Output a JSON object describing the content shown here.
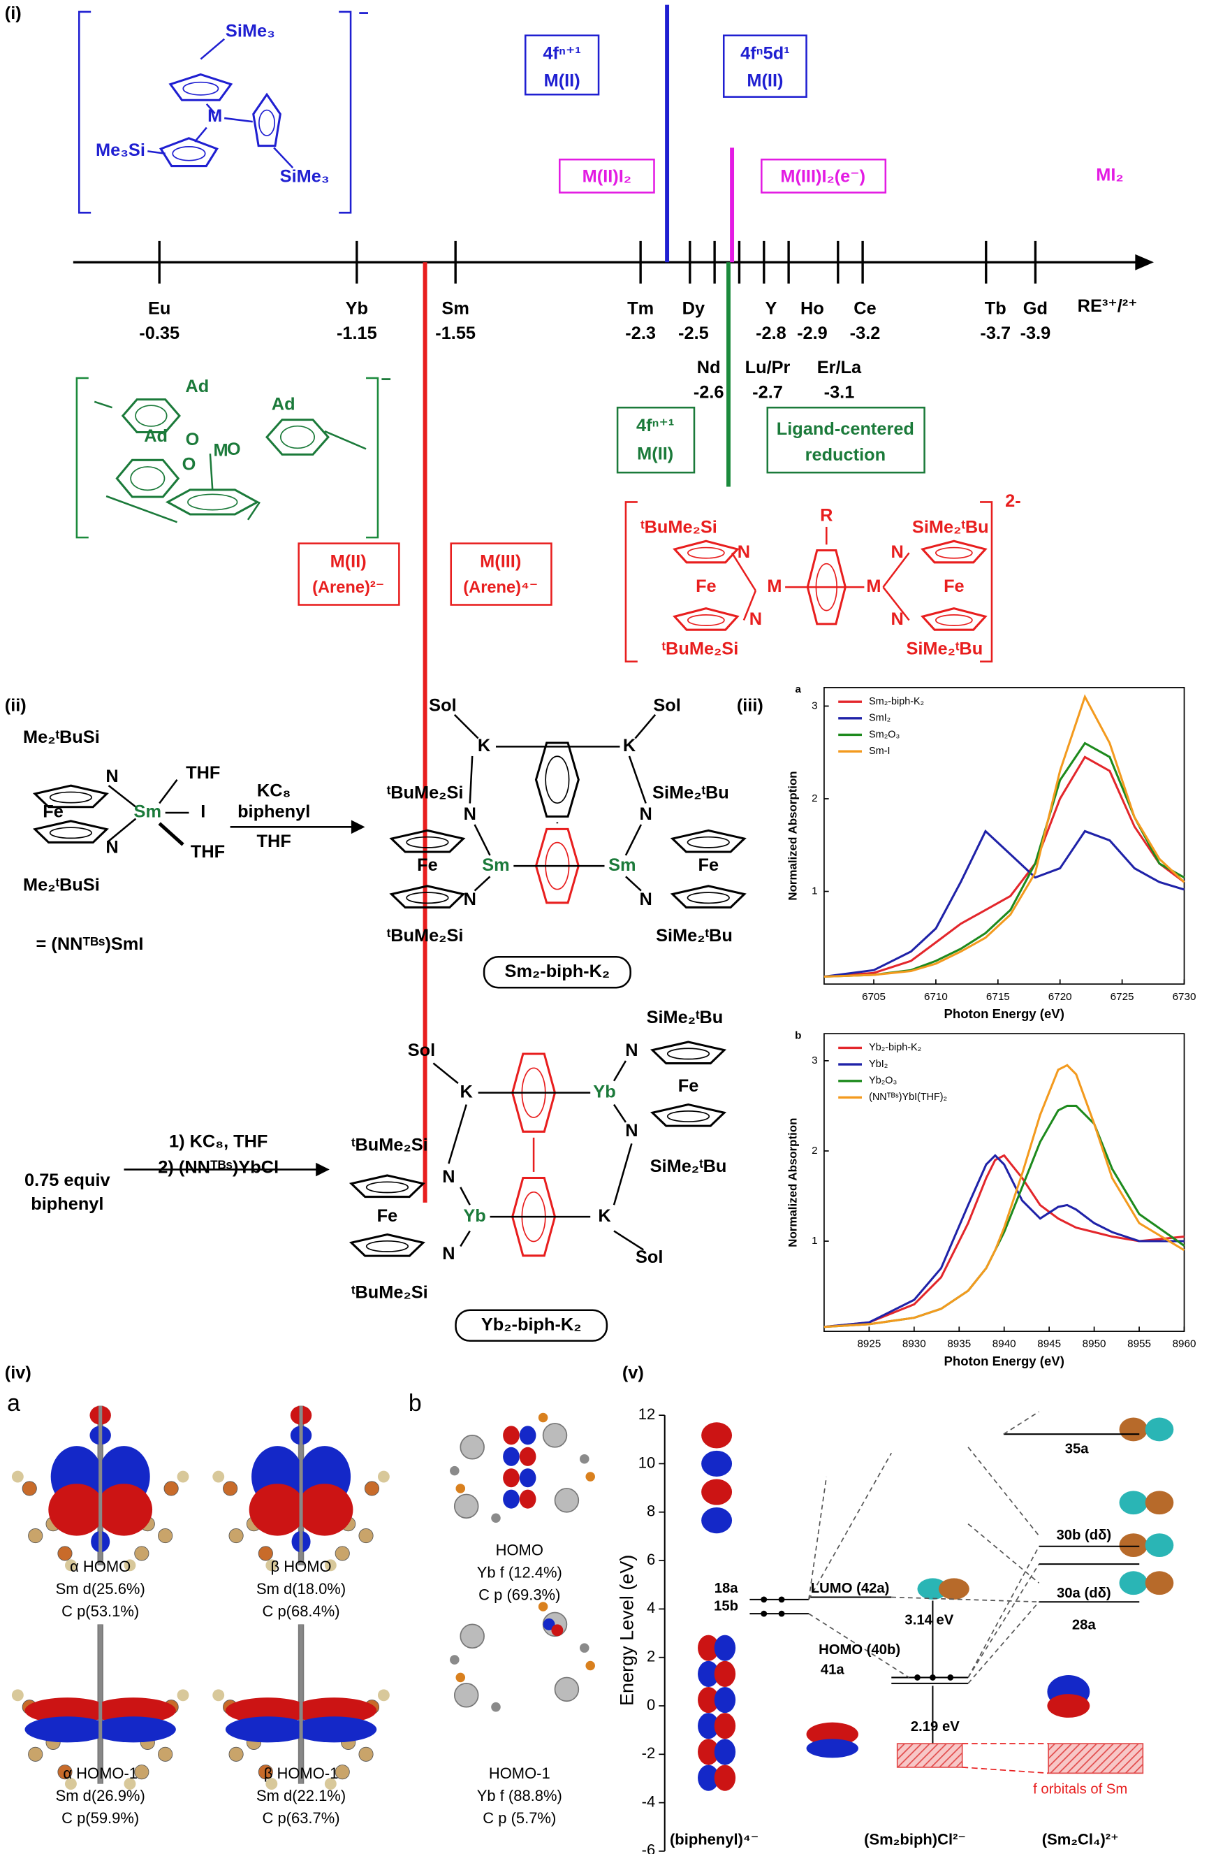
{
  "panel_i": {
    "label": "(i)",
    "axis_label": "RE³⁺/²⁺",
    "elements": [
      {
        "symbol": "Eu",
        "potential": -0.35
      },
      {
        "symbol": "Yb",
        "potential": -1.15
      },
      {
        "symbol": "Sm",
        "potential": -1.55
      },
      {
        "symbol": "Tm",
        "potential": -2.3
      },
      {
        "symbol": "Dy",
        "potential": -2.5
      },
      {
        "symbol": "Nd",
        "potential": -2.6
      },
      {
        "symbol": "Lu/Pr",
        "potential": -2.7
      },
      {
        "symbol": "Y",
        "potential": -2.8
      },
      {
        "symbol": "Ho",
        "potential": -2.9
      },
      {
        "symbol": "Er/La",
        "potential": -3.1
      },
      {
        "symbol": "Ce",
        "potential": -3.2
      },
      {
        "symbol": "Tb",
        "potential": -3.7
      },
      {
        "symbol": "Gd",
        "potential": -3.9
      }
    ],
    "blue_complex": [
      "SiMe₃",
      "M",
      "Me₃Si",
      "SiMe₃",
      "−"
    ],
    "blue_boxes": [
      [
        "4fⁿ⁺¹",
        "M(II)"
      ],
      [
        "4fⁿ5d¹",
        "M(II)"
      ]
    ],
    "magenta_labels": [
      "M(II)I₂",
      "M(III)I₂(e⁻)",
      "MI₂"
    ],
    "green_complex": [
      "Ad",
      "Ad",
      "Ad",
      "O",
      "O",
      "O",
      "M",
      "−"
    ],
    "green_boxes": [
      [
        "4fⁿ⁺¹",
        "M(II)"
      ],
      [
        "Ligand-centered",
        "reduction"
      ]
    ],
    "red_boxes": [
      [
        "M(II)",
        "(Arene)²⁻"
      ],
      [
        "M(III)",
        "(Arene)⁴⁻"
      ]
    ],
    "red_complex": [
      "ᵗBuMe₂Si",
      "N",
      "Fe",
      "N",
      "ᵗBuMe₂Si",
      "R",
      "M",
      "M",
      "SiMe₂ᵗBu",
      "N",
      "Fe",
      "N",
      "SiMe₂ᵗBu",
      "2-"
    ]
  },
  "panel_ii": {
    "label": "(ii)",
    "reactant": [
      "Me₂ᵗBuSi",
      "N",
      "THF",
      "Fe",
      "Sm",
      "I",
      "N",
      "THF",
      "Me₂ᵗBuSi",
      "= (NNᵀᴮˢ)SmI"
    ],
    "conditions_1": [
      "KC₈",
      "biphenyl",
      "THF"
    ],
    "product_1": [
      "Sol",
      "K",
      "K",
      "Sol",
      "ᵗBuMe₂Si",
      "N",
      "SiMe₂ᵗBu",
      "N",
      "Fe",
      "Sm",
      "Sm",
      "Fe",
      "N",
      "N",
      "ᵗBuMe₂Si",
      "SiMe₂ᵗBu"
    ],
    "product_1_name": "Sm₂-biph-K₂",
    "reagent_2": [
      "0.75 equiv",
      "biphenyl"
    ],
    "conditions_2": [
      "1) KC₈, THF",
      "2) (NNᵀᴮˢ)YbCl"
    ],
    "product_2": [
      "Sol",
      "K",
      "Yb",
      "SiMe₂ᵗBu",
      "N",
      "Fe",
      "N",
      "SiMe₂ᵗBu",
      "ᵗBuMe₂Si",
      "N",
      "Fe",
      "Yb",
      "K",
      "N",
      "ᵗBuMe₂Si",
      "Sol"
    ],
    "product_2_name": "Yb₂-biph-K₂"
  },
  "panel_iii": {
    "label": "(iii)"
  },
  "chart_data": [
    {
      "type": "line",
      "title": "a",
      "xlabel": "Photon Energy (eV)",
      "ylabel": "Normalized Absorption",
      "x": [
        6701,
        6705,
        6708,
        6710,
        6712,
        6714,
        6716,
        6718,
        6720,
        6722,
        6724,
        6726,
        6728,
        6730
      ],
      "xlim": [
        6701,
        6730
      ],
      "xticks": [
        6705,
        6710,
        6715,
        6720,
        6725,
        6730
      ],
      "ylim": [
        0,
        3.2
      ],
      "yticks": [
        1,
        2,
        3
      ],
      "series": [
        {
          "name": "Sm₂-biph-K₂",
          "color": "#e3262b",
          "values": [
            0.08,
            0.12,
            0.25,
            0.45,
            0.65,
            0.8,
            0.95,
            1.3,
            2.0,
            2.45,
            2.3,
            1.7,
            1.3,
            1.1
          ]
        },
        {
          "name": "SmI₂",
          "color": "#1f22a8",
          "values": [
            0.08,
            0.15,
            0.35,
            0.6,
            1.1,
            1.65,
            1.4,
            1.15,
            1.25,
            1.65,
            1.55,
            1.25,
            1.1,
            1.02
          ]
        },
        {
          "name": "Sm₂O₃",
          "color": "#1d8a1d",
          "values": [
            0.08,
            0.1,
            0.15,
            0.25,
            0.38,
            0.55,
            0.8,
            1.3,
            2.2,
            2.6,
            2.45,
            1.8,
            1.3,
            1.15
          ]
        },
        {
          "name": "Sm-I",
          "color": "#f39a1e",
          "values": [
            0.08,
            0.1,
            0.14,
            0.22,
            0.35,
            0.5,
            0.75,
            1.2,
            2.3,
            3.1,
            2.6,
            1.8,
            1.35,
            1.1
          ]
        }
      ]
    },
    {
      "type": "line",
      "title": "b",
      "xlabel": "Photon Energy (eV)",
      "ylabel": "Normalized Absorption",
      "x": [
        8920,
        8925,
        8930,
        8933,
        8936,
        8938,
        8939,
        8940,
        8942,
        8944,
        8946,
        8947,
        8948,
        8950,
        8952,
        8955,
        8960
      ],
      "xlim": [
        8920,
        8960
      ],
      "xticks": [
        8925,
        8930,
        8935,
        8940,
        8945,
        8950,
        8955,
        8960
      ],
      "ylim": [
        0,
        3.3
      ],
      "yticks": [
        1,
        2,
        3
      ],
      "series": [
        {
          "name": "Yb₂-biph-K₂",
          "color": "#e3262b",
          "values": [
            0.05,
            0.1,
            0.3,
            0.6,
            1.2,
            1.7,
            1.9,
            1.95,
            1.7,
            1.4,
            1.25,
            1.2,
            1.15,
            1.1,
            1.05,
            1.0,
            1.05
          ]
        },
        {
          "name": "YbI₂",
          "color": "#1f22a8",
          "values": [
            0.05,
            0.1,
            0.35,
            0.7,
            1.4,
            1.85,
            1.95,
            1.85,
            1.45,
            1.25,
            1.38,
            1.4,
            1.35,
            1.2,
            1.1,
            1.0,
            1.0
          ]
        },
        {
          "name": "Yb₂O₃",
          "color": "#1d8a1d",
          "values": [
            0.05,
            0.08,
            0.15,
            0.25,
            0.45,
            0.7,
            0.9,
            1.1,
            1.6,
            2.1,
            2.45,
            2.5,
            2.5,
            2.3,
            1.8,
            1.3,
            0.95
          ]
        },
        {
          "name": "(NNᵀᴮˢ)YbI(THF)₂",
          "color": "#f39a1e",
          "values": [
            0.05,
            0.08,
            0.15,
            0.25,
            0.45,
            0.7,
            0.9,
            1.15,
            1.75,
            2.4,
            2.9,
            2.95,
            2.85,
            2.3,
            1.7,
            1.2,
            0.9
          ]
        }
      ]
    }
  ],
  "panel_iv": {
    "label": "(iv)",
    "a": {
      "letter": "a",
      "captions": [
        [
          "α HOMO",
          "Sm d(25.6%)",
          "C  p(53.1%)"
        ],
        [
          "β HOMO",
          "Sm d(18.0%)",
          "C  p(68.4%)"
        ],
        [
          "α HOMO-1",
          "Sm d(26.9%)",
          "C  p(59.9%)"
        ],
        [
          "β HOMO-1",
          "Sm d(22.1%)",
          "C  p(63.7%)"
        ]
      ]
    },
    "b": {
      "letter": "b",
      "captions": [
        [
          "HOMO",
          "Yb f (12.4%)",
          "C  p (69.3%)"
        ],
        [
          "HOMO-1",
          "Yb f (88.8%)",
          "C  p (5.7%)"
        ]
      ]
    }
  },
  "panel_v": {
    "label": "(v)",
    "ylabel": "Energy Level (eV)",
    "ylim": [
      -6,
      12
    ],
    "yticks": [
      -6,
      -4,
      -2,
      0,
      2,
      4,
      6,
      8,
      10,
      12
    ],
    "levels": [
      "18a",
      "15b",
      "LUMO (42a)",
      "HOMO (40b)",
      "41a",
      "35a",
      "30b (dδ)",
      "30a (dδ)",
      "28a"
    ],
    "gaps": [
      "3.14 eV",
      "2.19 eV"
    ],
    "f_label": "f orbitals of Sm",
    "columns": [
      "(biphenyl)⁴⁻",
      "(Sm₂biph)Cl²⁻",
      "(Sm₂Cl₄)²⁺"
    ]
  }
}
